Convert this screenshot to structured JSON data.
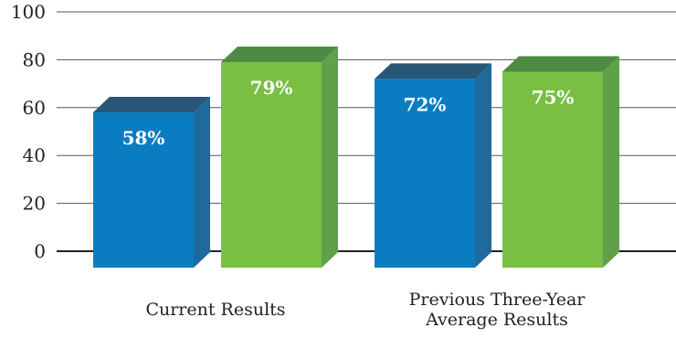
{
  "chart_data": {
    "type": "bar",
    "title": "",
    "xlabel": "",
    "ylabel": "",
    "ylim": [
      0,
      100
    ],
    "yticks": [
      0,
      20,
      40,
      60,
      80,
      100
    ],
    "grid": true,
    "legend": "none",
    "style": "3d",
    "categories": [
      {
        "lines": [
          "Current Results"
        ]
      },
      {
        "lines": [
          "Previous Three-Year",
          "Average Results"
        ]
      }
    ],
    "series": [
      {
        "values": [
          58,
          72
        ],
        "labels": [
          "58%",
          "72%"
        ],
        "color": "#0a7dc2"
      },
      {
        "values": [
          79,
          75
        ],
        "labels": [
          "79%",
          "75%"
        ],
        "color": "#79bf43"
      }
    ]
  },
  "colors": {
    "blue_front": "#0a7dc2",
    "blue_side": "#1e6a9d",
    "blue_top": "#2a5678",
    "green_front": "#79bf43",
    "green_side": "#5fa04a",
    "green_top": "#4f8a45",
    "grid": "#555555",
    "axis": "#222222"
  }
}
